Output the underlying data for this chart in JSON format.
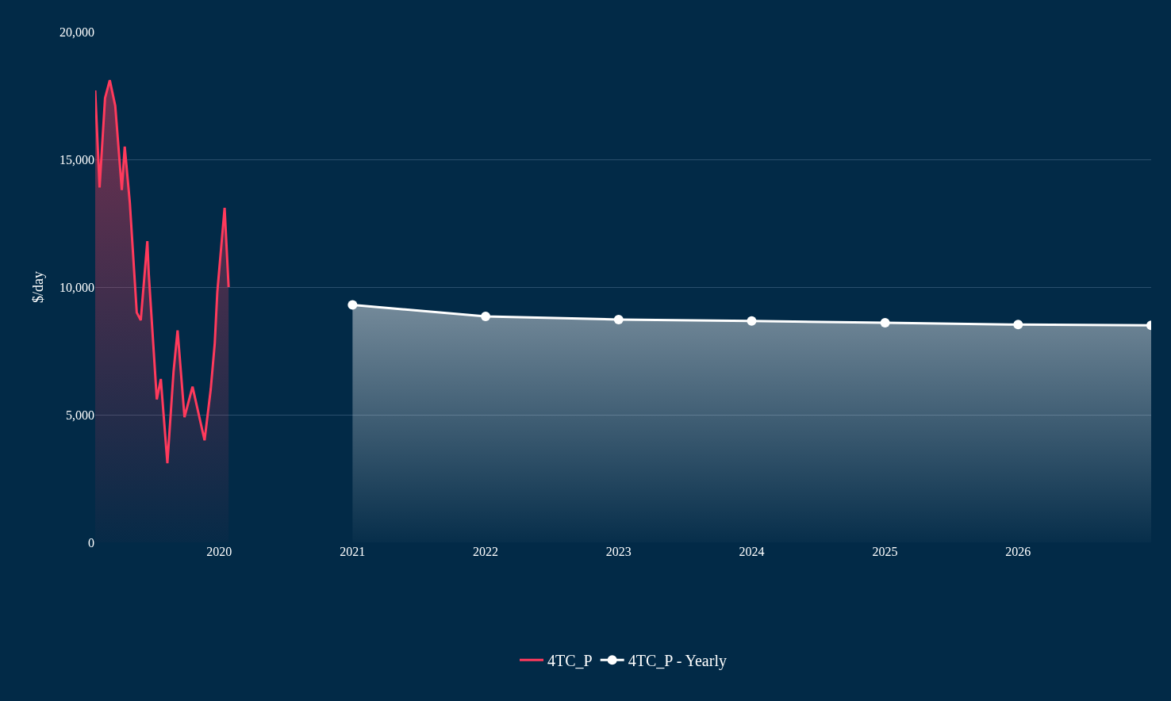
{
  "chart_data": {
    "type": "area",
    "ylabel": "$/day",
    "xlim": [
      "2019-01-26",
      "2027-01-01"
    ],
    "xticks": [
      "2020",
      "2021",
      "2022",
      "2023",
      "2024",
      "2025",
      "2026"
    ],
    "ylim": [
      0,
      20000
    ],
    "yticks": [
      {
        "value": 0,
        "label": "0"
      },
      {
        "value": 5000,
        "label": "5,000"
      },
      {
        "value": 10000,
        "label": "10,000"
      },
      {
        "value": 15000,
        "label": "15,000"
      },
      {
        "value": 20000,
        "label": "20,000"
      }
    ],
    "grid": "y",
    "legend": "bottom",
    "series": [
      {
        "name": "4TC_P",
        "color": "#ff3a5c",
        "marker": "none",
        "x": [
          "2019-01-26",
          "2019-02-07",
          "2019-02-22",
          "2019-03-07",
          "2019-03-22",
          "2019-04-09",
          "2019-04-17",
          "2019-05-01",
          "2019-05-20",
          "2019-05-31",
          "2019-06-18",
          "2019-06-22",
          "2019-07-14",
          "2019-07-25",
          "2019-08-12",
          "2019-08-29",
          "2019-09-09",
          "2019-09-28",
          "2019-10-20",
          "2019-11-22",
          "2019-12-09",
          "2019-12-20",
          "2019-12-27",
          "2020-01-16",
          "2020-01-27"
        ],
        "values": [
          17700,
          13900,
          17400,
          18100,
          17100,
          13800,
          15500,
          13300,
          9000,
          8700,
          11800,
          10500,
          5600,
          6400,
          3100,
          6700,
          8300,
          4900,
          6100,
          4000,
          6000,
          7800,
          9800,
          13100,
          10000
        ]
      },
      {
        "name": "4TC_P - Yearly",
        "color": "#ffffff",
        "marker": "circle",
        "x": [
          "2021",
          "2022",
          "2023",
          "2024",
          "2025",
          "2026",
          "2027"
        ],
        "values": [
          9300,
          8850,
          8730,
          8670,
          8600,
          8530,
          8500
        ]
      }
    ]
  }
}
